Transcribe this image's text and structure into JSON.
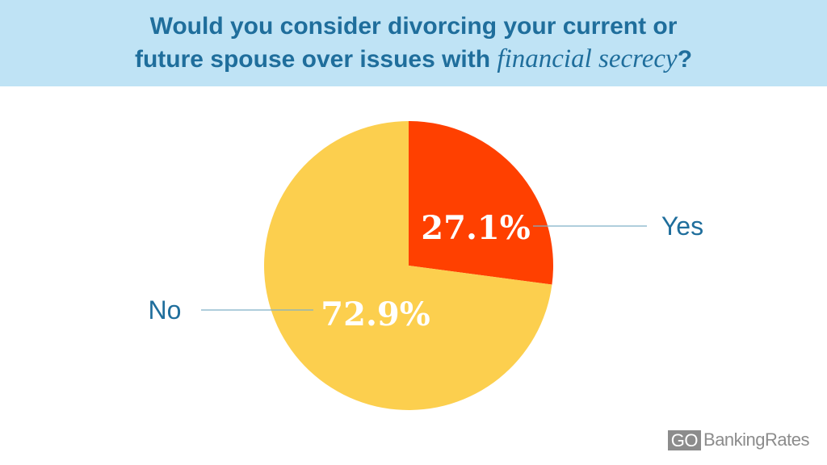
{
  "header": {
    "title_line1": "Would you consider divorcing your current or",
    "title_line2_prefix": "future spouse over issues with ",
    "title_line2_italic": "financial secrecy",
    "title_line2_suffix": "?"
  },
  "chart_data": {
    "type": "pie",
    "title": "Would you consider divorcing your current or future spouse over issues with financial secrecy?",
    "slices": [
      {
        "label": "Yes",
        "value": 27.1,
        "display": "27.1%",
        "color": "#ff4000"
      },
      {
        "label": "No",
        "value": 72.9,
        "display": "72.9%",
        "color": "#fccf4e"
      }
    ],
    "start_angle": "12 o'clock",
    "direction": "clockwise",
    "label_color": "#1f6e9c",
    "leader_line_color": "#7fb0c6"
  },
  "brand": {
    "logo_go": "GO",
    "logo_rest": "BankingRates"
  }
}
